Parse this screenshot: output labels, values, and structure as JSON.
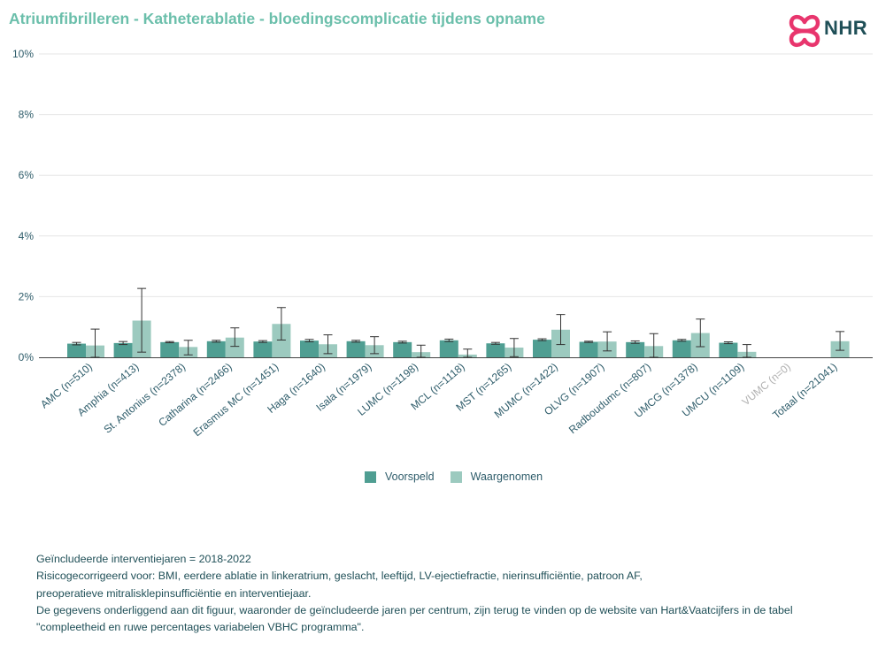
{
  "title": "Atriumfibrilleren - Katheterablatie - bloedingscomplicatie tijdens opname",
  "logo": {
    "text": "NHR",
    "brand_color": "#e8356d"
  },
  "colors": {
    "voorspeld": "#4f9e92",
    "waargenomen": "#9ccabf",
    "title": "#6bbfab",
    "text": "#2f5d6b"
  },
  "legend": {
    "voorspeld": "Voorspeld",
    "waargenomen": "Waargenomen"
  },
  "notes": [
    "Geïncludeerde interventiejaren = 2018-2022",
    "Risicogecorrigeerd voor: BMI, eerdere ablatie in linkeratrium, geslacht, leeftijd, LV-ejectiefractie, nierinsufficiëntie, patroon AF,",
    "preoperatieve mitralisklepinsufficiëntie en interventiejaar.",
    "De gegevens onderliggend aan dit figuur, waaronder de geïncludeerde jaren per centrum, zijn terug te vinden op de website van Hart&Vaatcijfers in de tabel",
    "\"compleetheid en ruwe percentages variabelen VBHC programma\"."
  ],
  "chart_data": {
    "type": "bar",
    "ylim": [
      0,
      10
    ],
    "yticks": [
      "0%",
      "2%",
      "4%",
      "6%",
      "8%",
      "10%"
    ],
    "ytick_values": [
      0,
      2,
      4,
      6,
      8,
      10
    ],
    "categories": [
      "AMC (n=510)",
      "Amphia (n=413)",
      "St. Antonius (n=2378)",
      "Catharina (n=2466)",
      "Erasmus MC (n=1451)",
      "Haga (n=1640)",
      "Isala (n=1979)",
      "LUMC (n=1198)",
      "MCL (n=1118)",
      "MST (n=1265)",
      "MUMC (n=1422)",
      "OLVG (n=1907)",
      "Radboudumc (n=807)",
      "UMCG (n=1378)",
      "UMCU (n=1109)",
      "VUMC (n=0)",
      "Totaal (n=21041)"
    ],
    "series": [
      {
        "name": "Voorspeld",
        "values": [
          0.45,
          0.47,
          0.5,
          0.53,
          0.52,
          0.55,
          0.53,
          0.5,
          0.56,
          0.46,
          0.58,
          0.51,
          0.5,
          0.56,
          0.48,
          null,
          null
        ],
        "err_low": [
          0.41,
          0.42,
          0.48,
          0.5,
          0.49,
          0.51,
          0.5,
          0.47,
          0.52,
          0.43,
          0.55,
          0.49,
          0.46,
          0.53,
          0.45,
          null,
          null
        ],
        "err_high": [
          0.49,
          0.52,
          0.52,
          0.56,
          0.55,
          0.59,
          0.56,
          0.53,
          0.6,
          0.49,
          0.61,
          0.53,
          0.54,
          0.59,
          0.51,
          null,
          null
        ]
      },
      {
        "name": "Waargenomen",
        "values": [
          0.39,
          1.21,
          0.34,
          0.65,
          1.1,
          0.43,
          0.4,
          0.17,
          0.09,
          0.32,
          0.91,
          0.52,
          0.37,
          0.8,
          0.18,
          null,
          0.53
        ],
        "err_low": [
          0,
          0.17,
          0.08,
          0.36,
          0.57,
          0.12,
          0.12,
          0,
          0,
          0.02,
          0.42,
          0.21,
          0,
          0.35,
          0,
          null,
          0.23
        ],
        "err_high": [
          0.93,
          2.27,
          0.56,
          0.97,
          1.64,
          0.74,
          0.68,
          0.4,
          0.27,
          0.62,
          1.41,
          0.84,
          0.78,
          1.26,
          0.42,
          null,
          0.85
        ]
      }
    ],
    "dimmed_categories": [
      "VUMC (n=0)"
    ]
  }
}
